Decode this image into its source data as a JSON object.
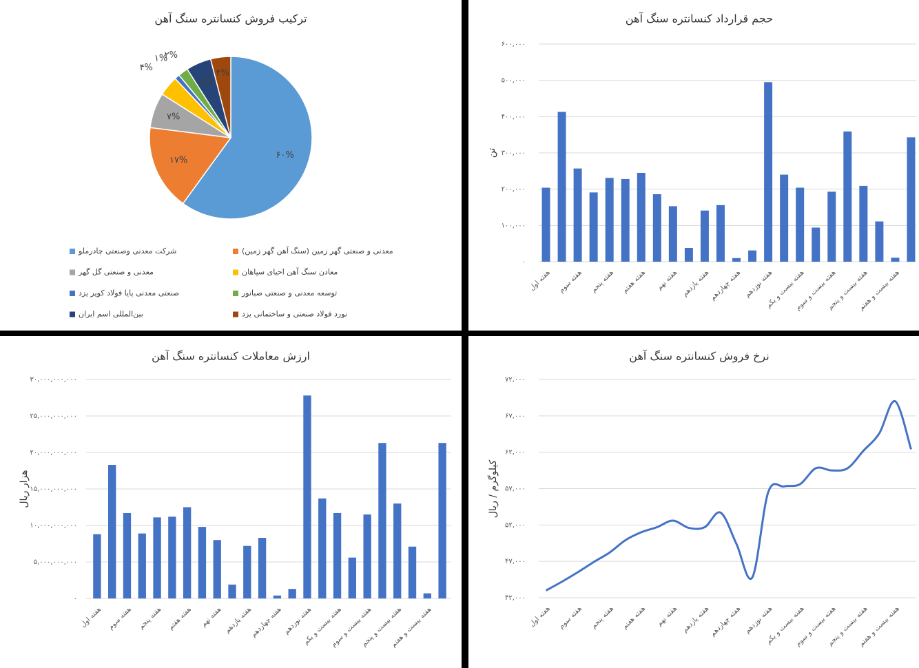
{
  "chart_data": [
    {
      "type": "pie",
      "title": "ترکیب فروش کنسانتره سنگ آهن",
      "categories": [
        "شرکت معدنی وصنعتی چادرملو",
        "معدنی و صنعتی گهر زمین (سنگ آهن گهر زمین)",
        "معدنی و صنعتی گل گهر",
        "معادن سنگ آهن احیای سپاهان",
        "صنعتی معدنی پایا فولاد کویر یزد",
        "توسعه معدنی و صنعتی صبانور",
        "بین‌المللی اسم ایران",
        "نورد فولاد صنعتی و ساختمانی یزد"
      ],
      "values": [
        60,
        17,
        7,
        4,
        1,
        2,
        5,
        4
      ],
      "value_labels": [
        "۶۰%",
        "۱۷%",
        "۷%",
        "۴%",
        "۱%",
        "۲%",
        "۵%",
        "۴%"
      ],
      "colors": [
        "#5b9bd5",
        "#ed7d31",
        "#a5a5a5",
        "#ffc000",
        "#4472c4",
        "#70ad47",
        "#264478",
        "#9e480e"
      ]
    },
    {
      "type": "bar",
      "title": "حجم قرارداد کنسانتره سنگ آهن",
      "y_label": "تن",
      "categories": [
        "هفته اول",
        null,
        "هفته سوم",
        null,
        "هفته پنجم",
        null,
        "هفته هفتم",
        null,
        "هفته نهم",
        null,
        "هفته یازدهم",
        null,
        "هفته چهاردهم",
        null,
        "هفته نوزدهم",
        null,
        "هفته بیست و یکم",
        null,
        "هفته بیست و سوم",
        null,
        "هفته بیست و پنجم",
        null,
        "هفته بیست و هفتم",
        null
      ],
      "values": [
        204000,
        413000,
        257000,
        191000,
        231000,
        228000,
        245000,
        186000,
        153000,
        38000,
        141000,
        156000,
        10000,
        31000,
        495000,
        240000,
        204000,
        94000,
        193000,
        359000,
        209000,
        111000,
        11000,
        343000
      ],
      "color": "#4472c4",
      "ylim": [
        0,
        600000
      ],
      "yticks": [
        {
          "value": 0,
          "label": "۰"
        },
        {
          "value": 100000,
          "label": "۱۰۰,۰۰۰"
        },
        {
          "value": 200000,
          "label": "۲۰۰,۰۰۰"
        },
        {
          "value": 300000,
          "label": "۳۰۰,۰۰۰"
        },
        {
          "value": 400000,
          "label": "۴۰۰,۰۰۰"
        },
        {
          "value": 500000,
          "label": "۵۰۰,۰۰۰"
        },
        {
          "value": 600000,
          "label": "۶۰۰,۰۰۰"
        }
      ],
      "grid": true
    },
    {
      "type": "bar",
      "title": "ارزش معاملات کنسانتره سنگ آهن",
      "y_label": "هزار ریال",
      "categories": [
        "هفته اول",
        null,
        "هفته سوم",
        null,
        "هفته پنجم",
        null,
        "هفته هفتم",
        null,
        "هفته نهم",
        null,
        "هفته یازدهم",
        null,
        "هفته چهاردهم",
        null,
        "هفته نوزدهم",
        null,
        "هفته بیست و یکم",
        null,
        "هفته بیست و سوم",
        null,
        "هفته بیست و پنجم",
        null,
        "هفته بیست و هفتم",
        null
      ],
      "values": [
        8800000000,
        18300000000,
        11700000000,
        8900000000,
        11100000000,
        11200000000,
        12500000000,
        9800000000,
        8000000000,
        1900000000,
        7200000000,
        8300000000,
        400000000,
        1300000000,
        27800000000,
        13700000000,
        11700000000,
        5600000000,
        11500000000,
        21300000000,
        13000000000,
        7100000000,
        700000000,
        21300000000
      ],
      "color": "#4472c4",
      "ylim": [
        0,
        30000000000
      ],
      "yticks": [
        {
          "value": 0,
          "label": "۰"
        },
        {
          "value": 5000000000,
          "label": "۵,۰۰۰,۰۰۰,۰۰۰"
        },
        {
          "value": 10000000000,
          "label": "۱۰,۰۰۰,۰۰۰,۰۰۰"
        },
        {
          "value": 15000000000,
          "label": "۱۵,۰۰۰,۰۰۰,۰۰۰"
        },
        {
          "value": 20000000000,
          "label": "۲۰,۰۰۰,۰۰۰,۰۰۰"
        },
        {
          "value": 25000000000,
          "label": "۲۵,۰۰۰,۰۰۰,۰۰۰"
        },
        {
          "value": 30000000000,
          "label": "۳۰,۰۰۰,۰۰۰,۰۰۰"
        }
      ],
      "grid": true
    },
    {
      "type": "line",
      "title": "نرخ فروش کنسانتره سنگ آهن",
      "y_label": "کیلوگرم / ریال",
      "categories": [
        "هفته اول",
        null,
        "هفته سوم",
        null,
        "هفته پنجم",
        null,
        "هفته هفتم",
        null,
        "هفته نهم",
        null,
        "هفته یازدهم",
        null,
        "هفته چهاردهم",
        null,
        "هفته نوزدهم",
        null,
        "هفته بیست و یکم",
        null,
        "هفته بیست و سوم",
        null,
        "هفته بیست و پنجم",
        null,
        "هفته بیست و هفتم",
        null
      ],
      "values": [
        43000,
        44200,
        45500,
        46900,
        48200,
        49900,
        51000,
        51700,
        52600,
        51600,
        51700,
        53700,
        49400,
        44800,
        56500,
        57300,
        57600,
        59800,
        59500,
        59800,
        62200,
        64600,
        69000,
        62400
      ],
      "color": "#4472c4",
      "ylim": [
        42000,
        72000
      ],
      "yticks": [
        {
          "value": 42000,
          "label": "۴۲,۰۰۰"
        },
        {
          "value": 47000,
          "label": "۴۷,۰۰۰"
        },
        {
          "value": 52000,
          "label": "۵۲,۰۰۰"
        },
        {
          "value": 57000,
          "label": "۵۷,۰۰۰"
        },
        {
          "value": 62000,
          "label": "۶۲,۰۰۰"
        },
        {
          "value": 67000,
          "label": "۶۷,۰۰۰"
        },
        {
          "value": 72000,
          "label": "۷۲,۰۰۰"
        }
      ],
      "grid": true
    }
  ]
}
